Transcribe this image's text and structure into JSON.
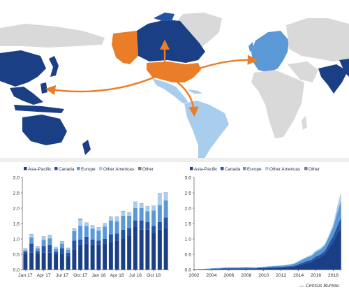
{
  "colors": {
    "asia_pacific": "#1b3f85",
    "canada": "#2453a5",
    "europe": "#5a98d6",
    "other_americas": "#a9cdec",
    "other": "#7a7a7a",
    "us": "#ea7d28",
    "land_other": "#d9d9d9",
    "axis": "#333333"
  },
  "legend": [
    "Asia-Pacific",
    "Canada",
    "Europe",
    "Other Americas",
    "Other"
  ],
  "source": "— Census Bureau",
  "chart_data": [
    {
      "type": "bar",
      "stacked": true,
      "x_tick_labels": [
        "Jan 17",
        "Apr 17",
        "Jul 17",
        "Oct 17",
        "Jan 18",
        "Apr 18",
        "Jul 18",
        "Oct 18"
      ],
      "y_ticks": [
        "0.0",
        "0.5",
        "1.0",
        "1.5",
        "2.0",
        "2.5",
        "3.0"
      ],
      "ylim": [
        0,
        3.0
      ],
      "legend_position": "top-left",
      "grid": false,
      "categories": [
        "Jan 17",
        "Feb 17",
        "Mar 17",
        "Apr 17",
        "May 17",
        "Jun 17",
        "Jul 17",
        "Aug 17",
        "Sep 17",
        "Oct 17",
        "Nov 17",
        "Dec 17",
        "Jan 18",
        "Feb 18",
        "Mar 18",
        "Apr 18",
        "May 18",
        "Jun 18",
        "Jul 18",
        "Aug 18",
        "Sep 18",
        "Oct 18",
        "Nov 18",
        "Dec 18"
      ],
      "series": [
        {
          "name": "Asia-Pacific",
          "values": [
            0.5,
            0.55,
            0.5,
            0.55,
            0.55,
            0.5,
            0.5,
            0.45,
            0.65,
            0.8,
            0.85,
            0.8,
            0.8,
            0.85,
            0.9,
            0.95,
            1.0,
            1.1,
            1.4,
            1.3,
            1.3,
            1.2,
            1.3,
            1.35
          ]
        },
        {
          "name": "Canada",
          "values": [
            0.08,
            0.3,
            0.1,
            0.22,
            0.25,
            0.08,
            0.2,
            0.1,
            0.3,
            0.18,
            0.22,
            0.18,
            0.15,
            0.15,
            0.25,
            0.22,
            0.3,
            0.25,
            0.2,
            0.3,
            0.25,
            0.22,
            0.25,
            0.35
          ]
        },
        {
          "name": "Europe",
          "values": [
            0.05,
            0.2,
            0.1,
            0.2,
            0.22,
            0.1,
            0.15,
            0.1,
            0.3,
            0.45,
            0.35,
            0.35,
            0.32,
            0.4,
            0.45,
            0.4,
            0.45,
            0.4,
            0.4,
            0.4,
            0.35,
            0.5,
            0.55,
            0.55
          ]
        },
        {
          "name": "Other Americas",
          "values": [
            0.05,
            0.1,
            0.05,
            0.1,
            0.1,
            0.05,
            0.07,
            0.05,
            0.08,
            0.2,
            0.1,
            0.1,
            0.1,
            0.1,
            0.12,
            0.15,
            0.15,
            0.1,
            0.2,
            0.15,
            0.15,
            0.15,
            0.38,
            0.25
          ]
        },
        {
          "name": "Other",
          "values": [
            0.01,
            0.01,
            0.01,
            0.01,
            0.01,
            0.01,
            0.01,
            0.01,
            0.01,
            0.03,
            0.01,
            0.01,
            0.01,
            0.01,
            0.01,
            0.01,
            0.01,
            0.01,
            0.01,
            0.01,
            0.01,
            0.01,
            0.01,
            0.01
          ]
        }
      ]
    },
    {
      "type": "area",
      "stacked": true,
      "x_tick_labels": [
        "2002",
        "2004",
        "2006",
        "2008",
        "2010",
        "2012",
        "2014",
        "2016",
        "2018"
      ],
      "y_ticks": [
        "0.0",
        "0.5",
        "1.0",
        "1.5",
        "2.0",
        "2.5",
        "3.0"
      ],
      "xlim": [
        2002,
        2019
      ],
      "ylim": [
        0,
        3.0
      ],
      "legend_position": "top-left",
      "grid": false,
      "x": [
        2002,
        2003,
        2004,
        2005,
        2006,
        2007,
        2008,
        2009,
        2010,
        2011,
        2012,
        2013,
        2013.5,
        2014,
        2014.5,
        2015,
        2015.5,
        2016,
        2016.5,
        2017,
        2017.5,
        2018,
        2018.5,
        2018.9
      ],
      "series": [
        {
          "name": "Asia-Pacific",
          "values": [
            0.01,
            0.01,
            0.02,
            0.03,
            0.04,
            0.04,
            0.04,
            0.04,
            0.05,
            0.06,
            0.07,
            0.09,
            0.1,
            0.14,
            0.18,
            0.22,
            0.25,
            0.35,
            0.4,
            0.5,
            0.7,
            0.9,
            1.2,
            1.35
          ]
        },
        {
          "name": "Canada",
          "values": [
            0.0,
            0.0,
            0.01,
            0.01,
            0.01,
            0.01,
            0.01,
            0.01,
            0.01,
            0.02,
            0.02,
            0.02,
            0.03,
            0.04,
            0.05,
            0.06,
            0.07,
            0.08,
            0.09,
            0.1,
            0.15,
            0.2,
            0.25,
            0.35
          ]
        },
        {
          "name": "Europe",
          "values": [
            0.0,
            0.01,
            0.01,
            0.02,
            0.02,
            0.02,
            0.03,
            0.02,
            0.03,
            0.03,
            0.04,
            0.05,
            0.06,
            0.08,
            0.1,
            0.12,
            0.13,
            0.15,
            0.16,
            0.18,
            0.22,
            0.3,
            0.45,
            0.55
          ]
        },
        {
          "name": "Other Americas",
          "values": [
            0.0,
            0.0,
            0.0,
            0.0,
            0.01,
            0.01,
            0.01,
            0.01,
            0.01,
            0.01,
            0.01,
            0.02,
            0.02,
            0.02,
            0.03,
            0.03,
            0.04,
            0.04,
            0.05,
            0.05,
            0.06,
            0.1,
            0.2,
            0.25
          ]
        },
        {
          "name": "Other",
          "values": [
            0,
            0,
            0,
            0,
            0,
            0,
            0,
            0,
            0,
            0,
            0,
            0,
            0,
            0,
            0,
            0,
            0,
            0,
            0,
            0,
            0,
            0,
            0.01,
            0.01
          ]
        }
      ]
    }
  ]
}
